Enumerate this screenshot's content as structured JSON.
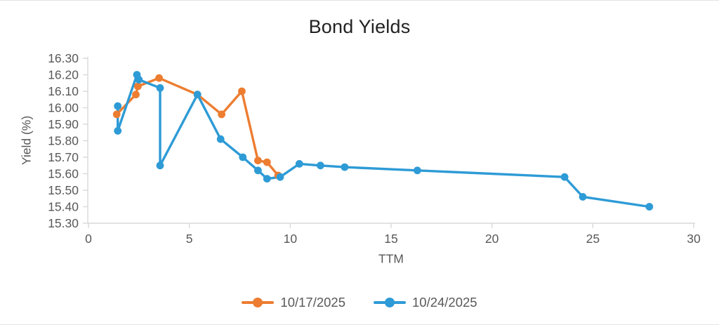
{
  "title": "Bond Yields",
  "colors": {
    "orange_series": "#ED7D31",
    "blue_series": "#2E9BD6",
    "axis_line": "#D9D9D9",
    "tick_label": "#595959",
    "title_text": "#222222"
  },
  "chart_data": {
    "type": "line",
    "title": "Bond Yields",
    "xlabel": "TTM",
    "ylabel": "Yield (%)",
    "xlim": [
      0,
      30
    ],
    "ylim": [
      15.3,
      16.3
    ],
    "x_ticks": [
      0,
      5,
      10,
      15,
      20,
      25,
      30
    ],
    "y_tick_step": 0.1,
    "y_tick_decimals": 2,
    "grid": false,
    "legend_position": "bottom",
    "series": [
      {
        "name": "10/17/2025",
        "color": "#ED7D31",
        "points": [
          [
            1.4,
            15.96
          ],
          [
            2.35,
            16.08
          ],
          [
            2.45,
            16.13
          ],
          [
            3.5,
            16.18
          ],
          [
            5.4,
            16.08
          ],
          [
            6.6,
            15.96
          ],
          [
            7.6,
            16.1
          ],
          [
            8.4,
            15.68
          ],
          [
            8.85,
            15.67
          ],
          [
            9.4,
            15.59
          ]
        ]
      },
      {
        "name": "10/24/2025",
        "color": "#2E9BD6",
        "points": [
          [
            1.45,
            16.01
          ],
          [
            1.45,
            15.86
          ],
          [
            2.4,
            16.2
          ],
          [
            2.5,
            16.17
          ],
          [
            3.55,
            16.12
          ],
          [
            3.55,
            15.65
          ],
          [
            5.4,
            16.08
          ],
          [
            6.55,
            15.81
          ],
          [
            7.65,
            15.7
          ],
          [
            8.4,
            15.62
          ],
          [
            8.85,
            15.57
          ],
          [
            9.5,
            15.58
          ],
          [
            10.45,
            15.66
          ],
          [
            11.5,
            15.65
          ],
          [
            12.7,
            15.64
          ],
          [
            16.3,
            15.62
          ],
          [
            23.6,
            15.58
          ],
          [
            24.5,
            15.46
          ],
          [
            27.8,
            15.4
          ]
        ]
      }
    ]
  }
}
